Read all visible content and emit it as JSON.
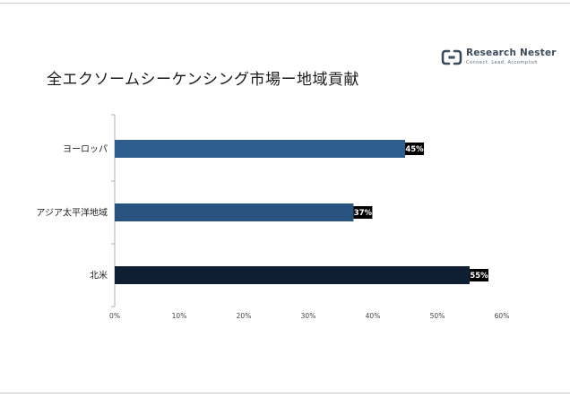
{
  "header": {
    "title": "全エクソームシーケンシング市場ー地域貢献",
    "logo_name": "Research Nester",
    "logo_tagline": "Connect. Lead. Accomplish"
  },
  "colors": {
    "bar_europe": "#2e5c8c",
    "bar_asia": "#28527f",
    "bar_north_america": "#0f1e33",
    "label_bg": "#000000",
    "axis": "#b0b0b0"
  },
  "chart_data": {
    "type": "bar",
    "orientation": "horizontal",
    "title": "全エクソームシーケンシング市場ー地域貢献",
    "categories": [
      "ヨーロッパ",
      "アジア太平洋地域",
      "北米"
    ],
    "values": [
      45,
      37,
      55
    ],
    "value_labels": [
      "45%",
      "37%",
      "55%"
    ],
    "xlim": [
      0,
      60
    ],
    "xticks": [
      "0%",
      "10%",
      "20%",
      "30%",
      "40%",
      "50%",
      "60%"
    ],
    "xlabel": "",
    "ylabel": "",
    "grid": false,
    "legend": "none"
  }
}
